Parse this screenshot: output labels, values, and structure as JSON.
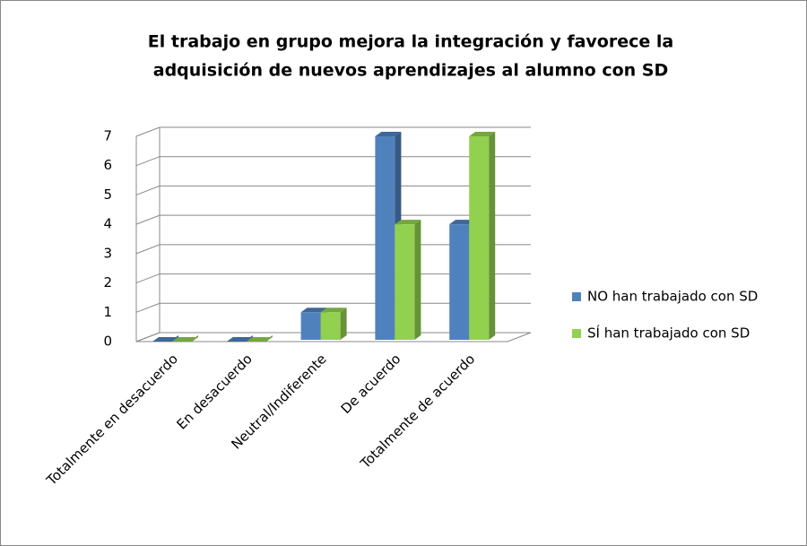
{
  "chart_data": {
    "type": "bar3d",
    "title": [
      "El trabajo en grupo mejora la integración y favorece la",
      "adquisición de nuevos aprendizajes al alumno con SD"
    ],
    "categories": [
      "Totalmente en desacuerdo",
      "En desacuerdo",
      "Neutral/Indiferente",
      "De acuerdo",
      "Totalmente de acuerdo"
    ],
    "series": [
      {
        "name": "NO han trabajado con SD",
        "color": "#4f81bd",
        "values": [
          0,
          0,
          1,
          7,
          4
        ]
      },
      {
        "name": "SÍ han trabajado con SD",
        "color": "#92d050",
        "values": [
          0,
          0,
          1,
          4,
          7
        ]
      }
    ],
    "ylim": [
      0,
      7
    ],
    "yticks": [
      0,
      1,
      2,
      3,
      4,
      5,
      6,
      7
    ],
    "grid": true,
    "legend": "right"
  }
}
